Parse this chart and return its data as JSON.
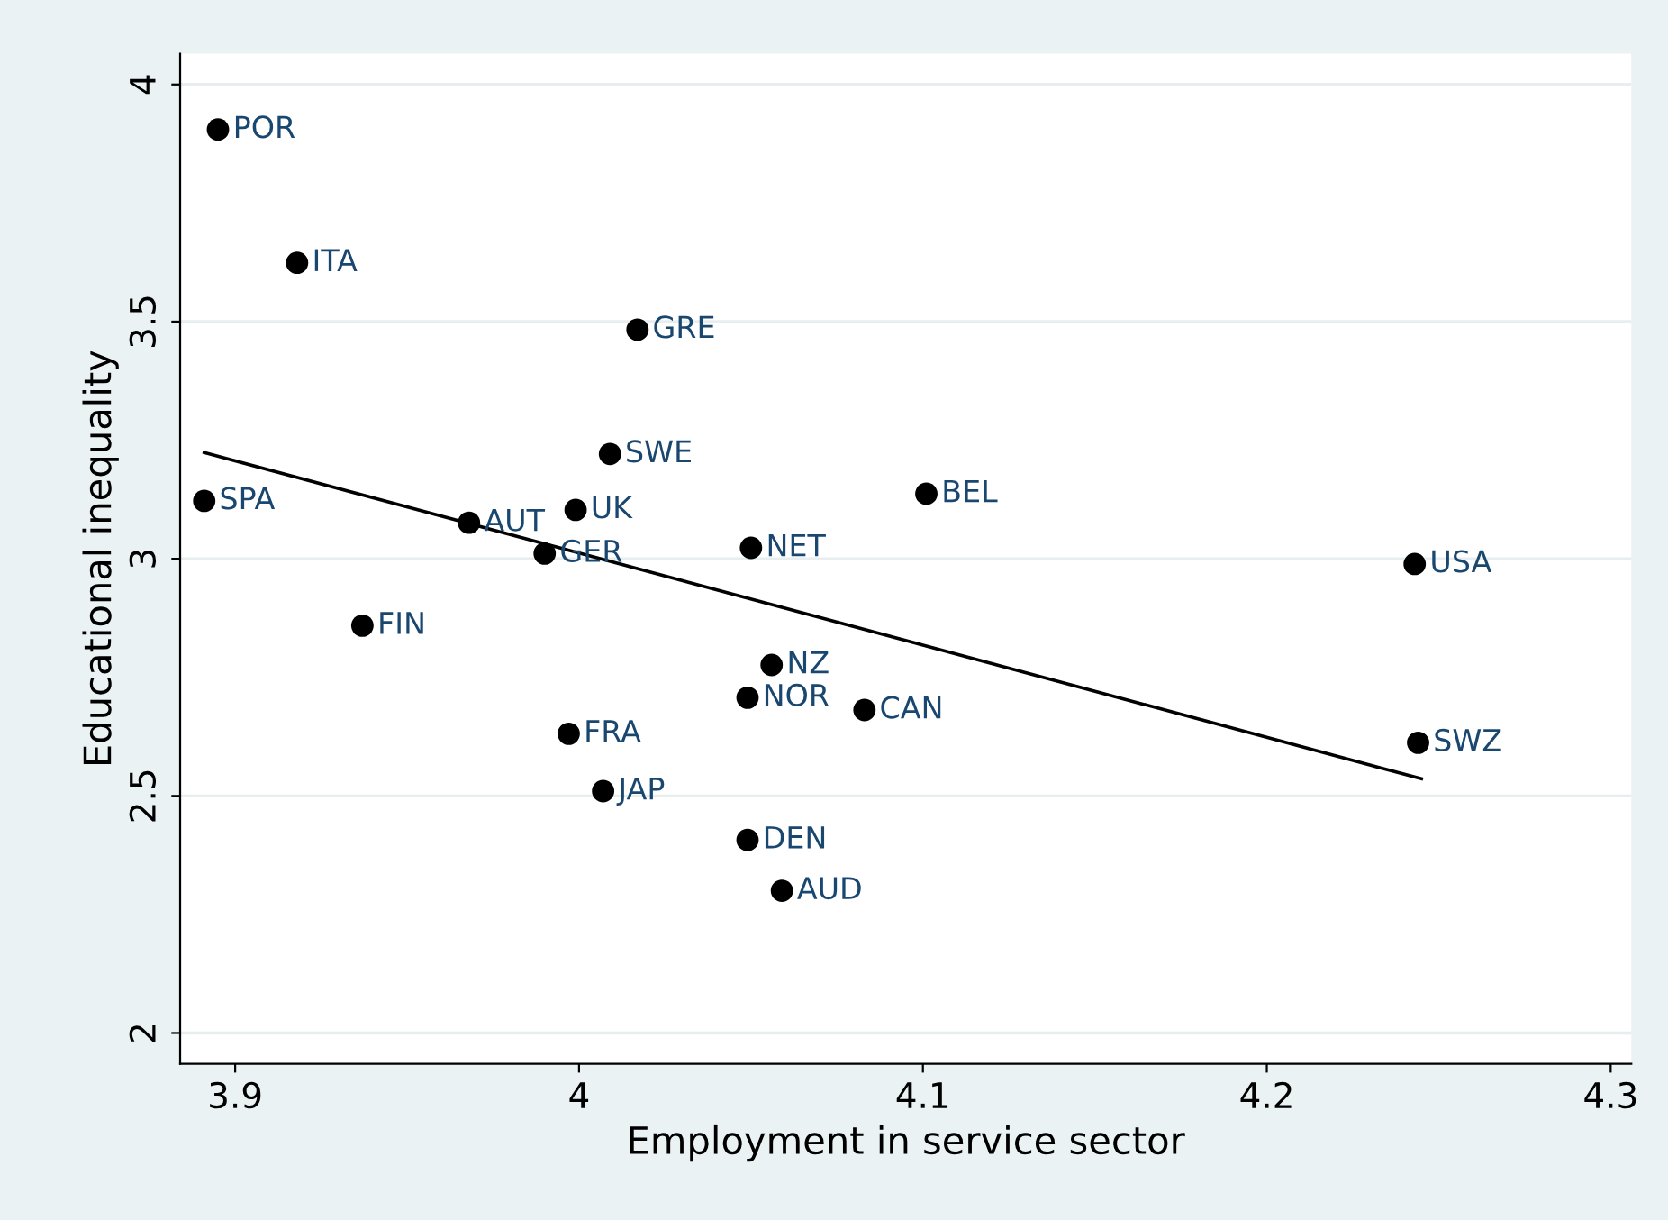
{
  "chart_data": {
    "type": "scatter",
    "xlabel": "Employment in service sector",
    "ylabel": "Educational inequality",
    "xlim": [
      3.884,
      4.306
    ],
    "ylim": [
      1.935,
      4.065
    ],
    "xticks": [
      3.9,
      4,
      4.1,
      4.2,
      4.3
    ],
    "yticks": [
      2,
      2.5,
      3,
      3.5,
      4
    ],
    "grid": "y",
    "legend": false,
    "marker": "circle",
    "series": [
      {
        "color": "#000000",
        "x": [
          3.895,
          3.918,
          4.017,
          4.009,
          3.891,
          3.999,
          3.968,
          3.99,
          4.05,
          4.101,
          4.243,
          3.937,
          4.056,
          4.049,
          4.083,
          3.997,
          4.244,
          4.007,
          4.049,
          4.059
        ],
        "values": [
          3.905,
          3.624,
          3.483,
          3.221,
          3.122,
          3.103,
          3.076,
          3.011,
          3.023,
          3.137,
          2.989,
          2.859,
          2.776,
          2.707,
          2.681,
          2.631,
          2.612,
          2.51,
          2.407,
          2.3
        ]
      },
      {
        "type": "line",
        "color": "#000000",
        "x": [
          3.891,
          4.245
        ],
        "values": [
          3.224,
          2.536
        ],
        "marker": "none"
      }
    ],
    "annotations": [
      {
        "text": "POR",
        "x": 3.895,
        "y": 3.905
      },
      {
        "text": "ITA",
        "x": 3.918,
        "y": 3.624
      },
      {
        "text": "GRE",
        "x": 4.017,
        "y": 3.483
      },
      {
        "text": "SWE",
        "x": 4.009,
        "y": 3.221
      },
      {
        "text": "SPA",
        "x": 3.891,
        "y": 3.122
      },
      {
        "text": "UK",
        "x": 3.999,
        "y": 3.103
      },
      {
        "text": "AUT",
        "x": 3.968,
        "y": 3.076
      },
      {
        "text": "GER",
        "x": 3.99,
        "y": 3.011
      },
      {
        "text": "NET",
        "x": 4.05,
        "y": 3.023
      },
      {
        "text": "BEL",
        "x": 4.101,
        "y": 3.137
      },
      {
        "text": "USA",
        "x": 4.243,
        "y": 2.989
      },
      {
        "text": "FIN",
        "x": 3.937,
        "y": 2.859
      },
      {
        "text": "NZ",
        "x": 4.056,
        "y": 2.776
      },
      {
        "text": "NOR",
        "x": 4.049,
        "y": 2.707
      },
      {
        "text": "CAN",
        "x": 4.083,
        "y": 2.681
      },
      {
        "text": "FRA",
        "x": 3.997,
        "y": 2.631
      },
      {
        "text": "SWZ",
        "x": 4.244,
        "y": 2.612
      },
      {
        "text": "JAP",
        "x": 4.007,
        "y": 2.51
      },
      {
        "text": "DEN",
        "x": 4.049,
        "y": 2.407
      },
      {
        "text": "AUD",
        "x": 4.059,
        "y": 2.3
      }
    ]
  }
}
